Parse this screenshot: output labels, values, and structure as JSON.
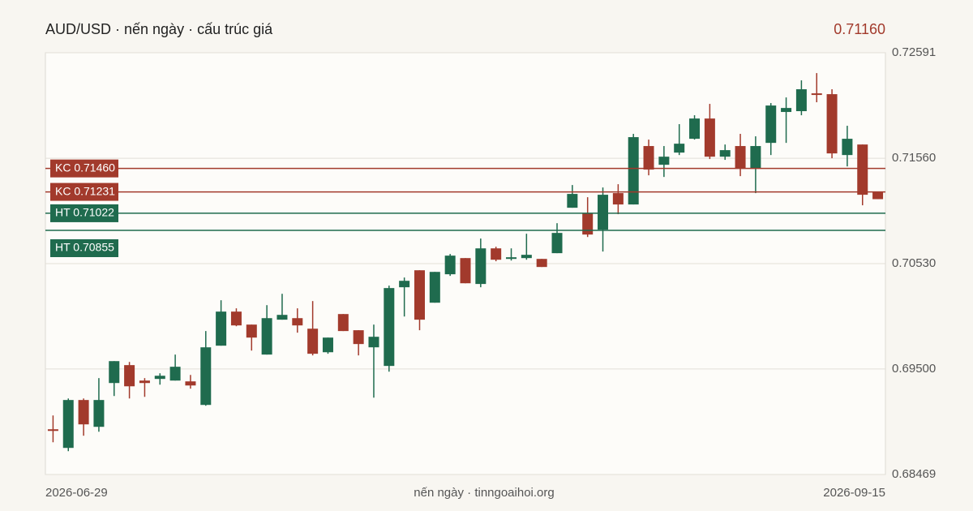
{
  "chart_data": {
    "type": "candlestick",
    "title": "AUD/USD · nến ngày · cấu trúc giá",
    "last_price": {
      "value": 0.7116,
      "label": "0.71160"
    },
    "footer": "nến ngày · tinngoaihoi.org",
    "up_color": "#1f6b4e",
    "down_color": "#a23a2c",
    "categories": [
      "2026-06-29",
      null,
      null,
      null,
      null,
      null,
      null,
      null,
      null,
      null,
      null,
      null,
      null,
      null,
      null,
      null,
      null,
      null,
      null,
      null,
      null,
      null,
      null,
      null,
      null,
      null,
      null,
      null,
      null,
      null,
      null,
      null,
      null,
      null,
      null,
      null,
      null,
      null,
      null,
      null,
      null,
      null,
      null,
      null,
      null,
      null,
      null,
      null,
      null,
      null,
      null,
      null,
      null,
      null,
      "2026-09-15"
    ],
    "open": [
      0.68911,
      0.68729,
      0.69197,
      0.68935,
      0.69363,
      0.69538,
      0.69387,
      0.69403,
      0.69387,
      0.69379,
      0.69149,
      0.69728,
      0.70061,
      0.69934,
      0.69641,
      0.69982,
      0.69997,
      0.69894,
      0.69664,
      0.70037,
      0.69879,
      0.69712,
      0.6953,
      0.70299,
      0.70465,
      0.70148,
      0.70426,
      0.70584,
      0.70331,
      0.70679,
      0.70576,
      0.70584,
      0.70576,
      0.70632,
      0.71076,
      0.7102,
      0.70862,
      0.71219,
      0.71108,
      0.71679,
      0.71496,
      0.71615,
      0.7175,
      0.71948,
      0.71575,
      0.71679,
      0.71457,
      0.7171,
      0.72012,
      0.7202,
      0.72194,
      0.72186,
      0.71591,
      0.71694,
      0.71227
    ],
    "high": [
      0.69046,
      0.69212,
      0.69212,
      0.69411,
      0.69577,
      0.69569,
      0.69411,
      0.69458,
      0.69641,
      0.69442,
      0.69871,
      0.70172,
      0.70093,
      0.69934,
      0.70124,
      0.70235,
      0.70093,
      0.70164,
      0.69807,
      0.70037,
      0.69879,
      0.69934,
      0.70315,
      0.70394,
      0.70465,
      0.70449,
      0.70624,
      0.70584,
      0.70775,
      0.70695,
      0.70679,
      0.70822,
      0.70576,
      0.70925,
      0.71298,
      0.71179,
      0.71274,
      0.71306,
      0.71798,
      0.71742,
      0.71679,
      0.71893,
      0.7198,
      0.72091,
      0.71694,
      0.71798,
      0.71774,
      0.72099,
      0.72154,
      0.72321,
      0.72392,
      0.72234,
      0.71877,
      0.71694,
      0.71227
    ],
    "low": [
      0.68784,
      0.68697,
      0.68848,
      0.68887,
      0.69236,
      0.69212,
      0.69228,
      0.69347,
      0.69387,
      0.69308,
      0.69141,
      0.69728,
      0.69918,
      0.6968,
      0.69641,
      0.69982,
      0.69855,
      0.69633,
      0.69649,
      0.69871,
      0.69633,
      0.6922,
      0.69474,
      0.70013,
      0.69879,
      0.70148,
      0.7041,
      0.70338,
      0.70299,
      0.70553,
      0.7056,
      0.70568,
      0.70497,
      0.70632,
      0.71076,
      0.7079,
      0.70648,
      0.71013,
      0.71108,
      0.71393,
      0.71377,
      0.71591,
      0.71742,
      0.71552,
      0.71544,
      0.71385,
      0.71219,
      0.71591,
      0.7171,
      0.7198,
      0.72107,
      0.7156,
      0.7148,
      0.711,
      0.7116
    ],
    "close": [
      0.68895,
      0.69197,
      0.68959,
      0.69197,
      0.69577,
      0.69331,
      0.69363,
      0.69434,
      0.69522,
      0.69339,
      0.69712,
      0.70061,
      0.69926,
      0.69807,
      0.69997,
      0.70029,
      0.69926,
      0.69649,
      0.69807,
      0.69871,
      0.69744,
      0.69815,
      0.70291,
      0.70362,
      0.69982,
      0.70449,
      0.70608,
      0.70338,
      0.70679,
      0.70568,
      0.70592,
      0.70616,
      0.70497,
      0.7083,
      0.71211,
      0.70814,
      0.71203,
      0.71108,
      0.71766,
      0.71449,
      0.71575,
      0.71702,
      0.71948,
      0.71575,
      0.71639,
      0.71457,
      0.71679,
      0.72075,
      0.72051,
      0.72234,
      0.72186,
      0.71607,
      0.7175,
      0.71203,
      0.7116
    ],
    "ylim": [
      0.68469,
      0.72591
    ],
    "yticks": [
      0.68469,
      {
        "value": 0.695,
        "label": "0.69500"
      },
      {
        "value": 0.7053,
        "label": "0.70530"
      },
      {
        "value": 0.7156,
        "label": "0.71560"
      },
      0.72591
    ],
    "grid": true,
    "levels": [
      {
        "value": 0.7146,
        "label": "KC 0.71460",
        "color": "#a23a2c"
      },
      {
        "value": 0.71231,
        "label": "KC 0.71231",
        "color": "#a23a2c"
      },
      {
        "value": 0.71022,
        "label": "HT 0.71022",
        "color": "#1f6b4e"
      },
      {
        "value": 0.70855,
        "label": "HT 0.70855",
        "color": "#1f6b4e"
      }
    ]
  }
}
